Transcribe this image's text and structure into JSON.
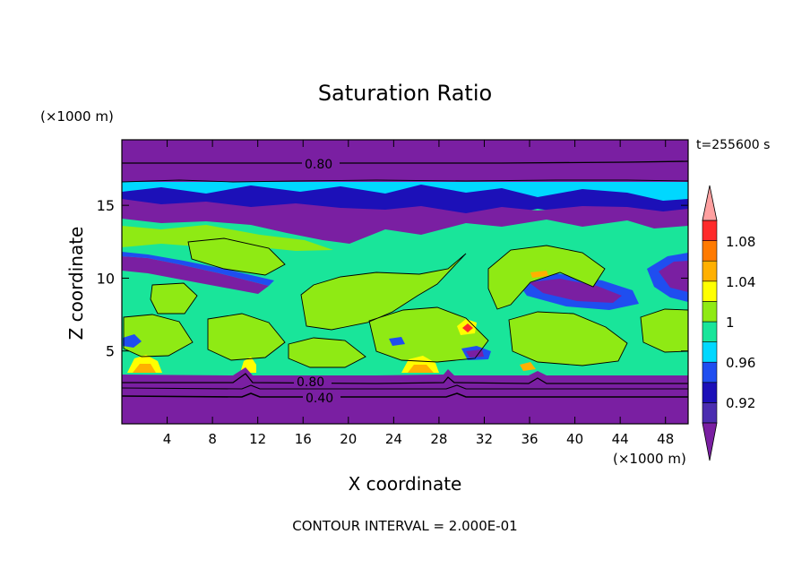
{
  "chart_data": {
    "type": "heatmap",
    "title": "Saturation Ratio",
    "xlabel": "X coordinate",
    "ylabel": "Z coordinate",
    "x_unit": "(×1000 m)",
    "y_unit": "(×1000 m)",
    "time_label": "t=255600 s",
    "footer": "CONTOUR INTERVAL = 2.000E-01",
    "xlim": [
      0,
      50
    ],
    "ylim": [
      0,
      19.5
    ],
    "xticks": [
      4,
      8,
      12,
      16,
      20,
      24,
      28,
      32,
      36,
      40,
      44,
      48
    ],
    "yticks": [
      5,
      10,
      15
    ],
    "contour_labels": [
      {
        "text": "0.80",
        "x": 17,
        "z": 18.1
      },
      {
        "text": "0.80",
        "x": 17,
        "z": 2.9
      },
      {
        "text": "0.40",
        "x": 17,
        "z": 1.8
      }
    ],
    "colorbar": {
      "labels": [
        "1.08",
        "1.04",
        "1",
        "0.96",
        "0.92"
      ],
      "levels": [
        "<0.90",
        "0.90-0.92",
        "0.92-0.94",
        "0.94-0.96",
        "0.96-0.98",
        "0.98-1.00",
        "1.00-1.02",
        "1.02-1.04",
        "1.04-1.06",
        "1.06-1.08",
        "1.08-1.10",
        ">1.10"
      ],
      "colors": [
        "#7a1fa2",
        "#4b2db0",
        "#1c10b8",
        "#1f4ef0",
        "#00d8ff",
        "#19e59a",
        "#8fea14",
        "#ffff00",
        "#ffb000",
        "#ff7a00",
        "#ff2a2a",
        "#ffa0a0"
      ]
    },
    "field_colors": {
      "dry_purple": "#7a1fa2",
      "deep_blue": "#1c10b8",
      "mid_blue": "#1f4ef0",
      "cyan": "#00d8ff",
      "teal_green": "#19e59a",
      "light_green": "#8fea14",
      "yellow": "#ffff00",
      "orange": "#ffb000",
      "red": "#ff2a2a"
    }
  }
}
